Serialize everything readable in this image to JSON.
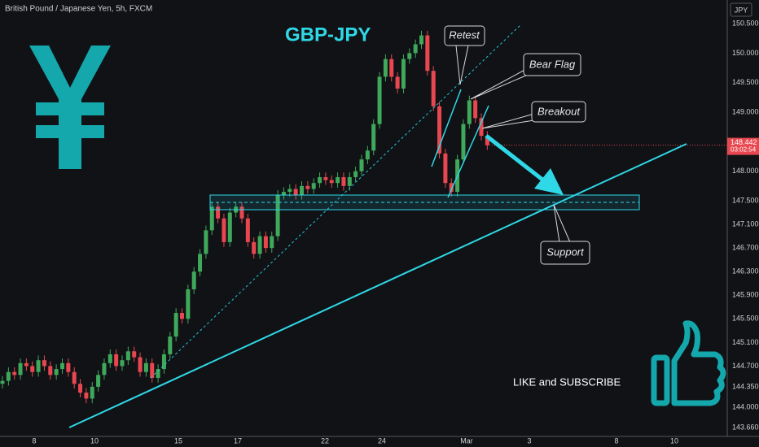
{
  "chart_data": {
    "type": "candlestick",
    "title": "GBP-JPY",
    "subtitle": "British Pound / Japanese Yen, 5h, FXCM",
    "currency": "JPY",
    "up_color": "#3fa85a",
    "down_color": "#e8474f",
    "ylim": [
      143.55,
      150.9
    ],
    "yticks": [
      {
        "value": 150.5,
        "label": "150.500"
      },
      {
        "value": 150.0,
        "label": "150.000"
      },
      {
        "value": 149.5,
        "label": "149.500"
      },
      {
        "value": 149.0,
        "label": "149.000"
      },
      {
        "value": 148.0,
        "label": "148.000"
      },
      {
        "value": 147.5,
        "label": "147.500"
      },
      {
        "value": 147.1,
        "label": "147.100"
      },
      {
        "value": 146.7,
        "label": "146.700"
      },
      {
        "value": 146.3,
        "label": "146.300"
      },
      {
        "value": 145.9,
        "label": "145.900"
      },
      {
        "value": 145.5,
        "label": "145.500"
      },
      {
        "value": 145.1,
        "label": "145.100"
      },
      {
        "value": 144.7,
        "label": "144.700"
      },
      {
        "value": 144.35,
        "label": "144.350"
      },
      {
        "value": 144.0,
        "label": "144.000"
      },
      {
        "value": 143.66,
        "label": "143.660"
      }
    ],
    "xlabels": [
      "8",
      "10",
      "15",
      "17",
      "22",
      "24",
      "Mar",
      "3",
      "8",
      "10"
    ],
    "last_price": 148.442,
    "last_price_label": "148.442",
    "countdown": "03:02:54",
    "annotations": {
      "retest": "Retest",
      "bear_flag": "Bear Flag",
      "breakout": "Breakout",
      "support": "Support",
      "cta": "LIKE and SUBSCRIBE"
    },
    "candles": [
      [
        144.4,
        144.53,
        144.32,
        144.45
      ],
      [
        144.45,
        144.68,
        144.37,
        144.6
      ],
      [
        144.6,
        144.68,
        144.47,
        144.55
      ],
      [
        144.55,
        144.83,
        144.47,
        144.75
      ],
      [
        144.75,
        144.83,
        144.62,
        144.7
      ],
      [
        144.7,
        144.78,
        144.52,
        144.6
      ],
      [
        144.6,
        144.88,
        144.52,
        144.8
      ],
      [
        144.8,
        144.88,
        144.62,
        144.7
      ],
      [
        144.7,
        144.78,
        144.47,
        144.55
      ],
      [
        144.55,
        144.73,
        144.47,
        144.65
      ],
      [
        144.65,
        144.83,
        144.57,
        144.75
      ],
      [
        144.75,
        144.83,
        144.52,
        144.6
      ],
      [
        144.6,
        144.68,
        144.32,
        144.4
      ],
      [
        144.4,
        144.48,
        144.17,
        144.25
      ],
      [
        144.25,
        144.33,
        144.07,
        144.15
      ],
      [
        144.15,
        144.43,
        144.07,
        144.35
      ],
      [
        144.35,
        144.63,
        144.27,
        144.55
      ],
      [
        144.55,
        144.83,
        144.47,
        144.75
      ],
      [
        144.75,
        144.98,
        144.67,
        144.9
      ],
      [
        144.9,
        144.98,
        144.62,
        144.7
      ],
      [
        144.7,
        144.88,
        144.62,
        144.8
      ],
      [
        144.8,
        145.03,
        144.72,
        144.95
      ],
      [
        144.95,
        145.03,
        144.77,
        144.85
      ],
      [
        144.85,
        144.93,
        144.52,
        144.6
      ],
      [
        144.6,
        144.83,
        144.52,
        144.75
      ],
      [
        144.75,
        144.83,
        144.42,
        144.5
      ],
      [
        144.5,
        144.73,
        144.42,
        144.65
      ],
      [
        144.65,
        144.98,
        144.57,
        144.9
      ],
      [
        144.9,
        145.28,
        144.82,
        145.2
      ],
      [
        145.2,
        145.68,
        145.12,
        145.6
      ],
      [
        145.6,
        145.68,
        145.42,
        145.5
      ],
      [
        145.5,
        146.08,
        145.42,
        146.0
      ],
      [
        146.0,
        146.38,
        145.92,
        146.3
      ],
      [
        146.3,
        146.68,
        146.22,
        146.6
      ],
      [
        146.6,
        147.08,
        146.52,
        147.0
      ],
      [
        147.0,
        147.48,
        146.92,
        147.4
      ],
      [
        147.4,
        147.48,
        147.12,
        147.2
      ],
      [
        147.2,
        147.28,
        146.72,
        146.8
      ],
      [
        146.8,
        147.38,
        146.72,
        147.3
      ],
      [
        147.3,
        147.48,
        147.22,
        147.4
      ],
      [
        147.4,
        147.48,
        147.12,
        147.2
      ],
      [
        147.2,
        147.28,
        146.72,
        146.8
      ],
      [
        146.8,
        146.88,
        146.52,
        146.6
      ],
      [
        146.6,
        146.98,
        146.52,
        146.9
      ],
      [
        146.9,
        146.98,
        146.62,
        146.7
      ],
      [
        146.7,
        146.98,
        146.62,
        146.9
      ],
      [
        146.9,
        147.68,
        146.82,
        147.6
      ],
      [
        147.6,
        147.73,
        147.52,
        147.65
      ],
      [
        147.65,
        147.78,
        147.57,
        147.7
      ],
      [
        147.7,
        147.78,
        147.52,
        147.6
      ],
      [
        147.6,
        147.83,
        147.52,
        147.75
      ],
      [
        147.75,
        147.83,
        147.62,
        147.7
      ],
      [
        147.7,
        147.88,
        147.62,
        147.8
      ],
      [
        147.8,
        147.98,
        147.72,
        147.9
      ],
      [
        147.9,
        147.98,
        147.77,
        147.85
      ],
      [
        147.85,
        147.93,
        147.72,
        147.8
      ],
      [
        147.8,
        147.98,
        147.72,
        147.9
      ],
      [
        147.9,
        147.98,
        147.67,
        147.75
      ],
      [
        147.75,
        147.98,
        147.67,
        147.9
      ],
      [
        147.9,
        148.08,
        147.82,
        148.0
      ],
      [
        148.0,
        148.28,
        147.92,
        148.2
      ],
      [
        148.2,
        148.43,
        148.12,
        148.35
      ],
      [
        148.35,
        148.88,
        148.27,
        148.8
      ],
      [
        148.8,
        149.68,
        148.72,
        149.6
      ],
      [
        149.6,
        149.98,
        149.52,
        149.9
      ],
      [
        149.9,
        149.98,
        149.52,
        149.6
      ],
      [
        149.6,
        149.68,
        149.32,
        149.4
      ],
      [
        149.4,
        149.98,
        149.32,
        149.9
      ],
      [
        149.9,
        150.08,
        149.82,
        150.0
      ],
      [
        150.0,
        150.23,
        149.92,
        150.15
      ],
      [
        150.15,
        150.38,
        150.07,
        150.3
      ],
      [
        150.3,
        150.38,
        149.62,
        149.7
      ],
      [
        149.7,
        149.78,
        149.02,
        149.1
      ],
      [
        149.1,
        149.18,
        148.22,
        148.3
      ],
      [
        148.3,
        148.38,
        147.72,
        147.8
      ],
      [
        147.8,
        147.88,
        147.57,
        147.65
      ],
      [
        147.65,
        148.28,
        147.57,
        148.2
      ],
      [
        148.2,
        148.88,
        148.12,
        148.8
      ],
      [
        148.8,
        149.28,
        148.72,
        149.2
      ],
      [
        149.2,
        149.28,
        148.82,
        148.9
      ],
      [
        148.9,
        148.98,
        148.52,
        148.6
      ],
      [
        148.6,
        148.68,
        148.36,
        148.44
      ]
    ]
  }
}
